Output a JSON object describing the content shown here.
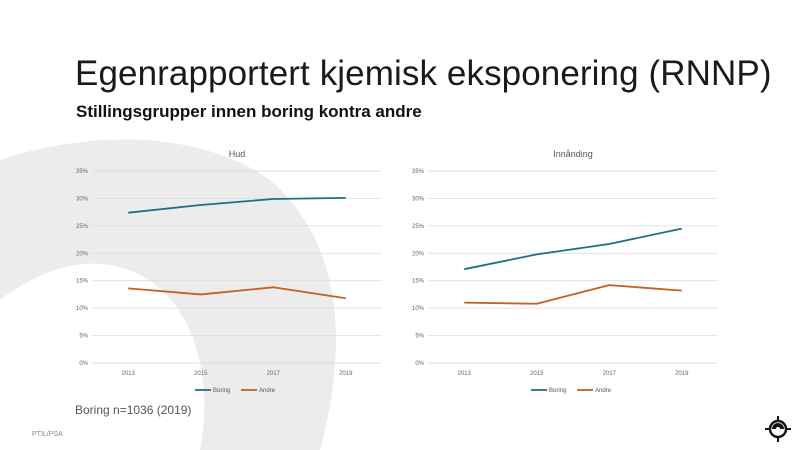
{
  "slide": {
    "title": "Egenrapportert kjemisk eksponering (RNNP)",
    "subtitle": "Stillingsgrupper innen boring kontra andre",
    "footnote": "Boring n=1036 (2019)",
    "credit": "PTIL/PSA"
  },
  "colors": {
    "boring": "#1f6f86",
    "andre": "#c65f1f",
    "grid": "#d9d9d9",
    "background_shape": "#ececec"
  },
  "chart_data": [
    {
      "type": "line",
      "title": "Hud",
      "categories": [
        "2013",
        "2015",
        "2017",
        "2019"
      ],
      "series": [
        {
          "name": "Boring",
          "values": [
            27.4,
            28.8,
            29.9,
            30.1
          ]
        },
        {
          "name": "Andre",
          "values": [
            13.6,
            12.5,
            13.8,
            11.8
          ]
        }
      ],
      "yticks": [
        "0%",
        "5%",
        "10%",
        "15%",
        "20%",
        "25%",
        "30%",
        "35%"
      ],
      "ylim": [
        0,
        35
      ],
      "grid": true,
      "legend": "bottom"
    },
    {
      "type": "line",
      "title": "Innånding",
      "categories": [
        "2013",
        "2015",
        "2017",
        "2019"
      ],
      "series": [
        {
          "name": "Boring",
          "values": [
            17.1,
            19.8,
            21.7,
            24.5
          ]
        },
        {
          "name": "Andre",
          "values": [
            11.0,
            10.8,
            14.2,
            13.2
          ]
        }
      ],
      "yticks": [
        "0%",
        "5%",
        "10%",
        "15%",
        "20%",
        "25%",
        "30%",
        "35%"
      ],
      "ylim": [
        0,
        35
      ],
      "grid": true,
      "legend": "bottom"
    }
  ]
}
